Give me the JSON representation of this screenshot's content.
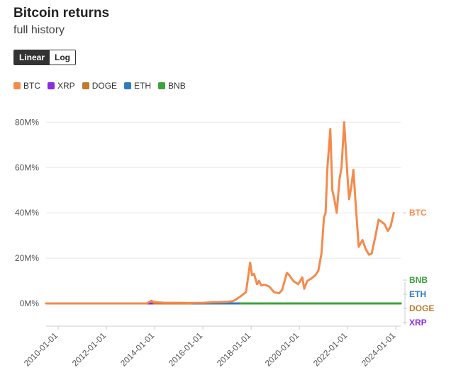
{
  "title": "Bitcoin returns",
  "subtitle": "full history",
  "toggle": {
    "linear_label": "Linear",
    "log_label": "Log",
    "selected": "Linear"
  },
  "colors": {
    "BTC": "#f58a4c",
    "XRP": "#8a2be2",
    "DOGE": "#c07a2c",
    "ETH": "#2f7bbf",
    "BNB": "#3ca33c",
    "grid": "#e8e8e8",
    "axis": "#cccccc",
    "text": "#555555"
  },
  "chart_data": {
    "type": "line",
    "title": "Bitcoin returns",
    "subtitle": "full history",
    "xlabel": "",
    "ylabel": "",
    "x_type": "date",
    "xlim": [
      "2009-07-01",
      "2024-03-15"
    ],
    "ylim": [
      -10000000,
      87000000
    ],
    "y_ticks": [
      0,
      20000000,
      40000000,
      60000000,
      80000000
    ],
    "y_tick_labels": [
      "0M%",
      "20M%",
      "40M%",
      "60M%",
      "80M%"
    ],
    "x_tick_labels": [
      "2010-01-01",
      "2012-01-01",
      "2014-01-01",
      "2016-01-01",
      "2018-01-01",
      "2020-01-01",
      "2022-01-01",
      "2024-01-01"
    ],
    "grid": true,
    "legend": "top-left",
    "series": [
      {
        "name": "BTC",
        "label": "BTC",
        "x": [
          "2009-07-01",
          "2013-03-01",
          "2013-06-01",
          "2013-09-01",
          "2013-11-15",
          "2013-12-01",
          "2014-02-01",
          "2014-06-01",
          "2015-01-01",
          "2015-06-01",
          "2016-01-01",
          "2016-06-01",
          "2017-01-01",
          "2017-04-01",
          "2017-06-01",
          "2017-09-01",
          "2017-10-15",
          "2017-12-17",
          "2018-01-15",
          "2018-02-15",
          "2018-04-01",
          "2018-05-01",
          "2018-06-01",
          "2018-08-01",
          "2018-10-01",
          "2018-12-15",
          "2019-03-01",
          "2019-04-15",
          "2019-06-26",
          "2019-08-01",
          "2019-10-01",
          "2019-12-15",
          "2020-02-15",
          "2020-03-15",
          "2020-05-01",
          "2020-07-01",
          "2020-09-01",
          "2020-10-15",
          "2020-12-01",
          "2021-01-08",
          "2021-02-01",
          "2021-03-01",
          "2021-04-14",
          "2021-05-15",
          "2021-06-15",
          "2021-07-20",
          "2021-09-01",
          "2021-10-01",
          "2021-11-10",
          "2021-12-01",
          "2022-01-01",
          "2022-01-24",
          "2022-03-01",
          "2022-03-30",
          "2022-05-01",
          "2022-06-18",
          "2022-08-15",
          "2022-10-01",
          "2022-11-21",
          "2023-01-01",
          "2023-03-01",
          "2023-04-15",
          "2023-06-01",
          "2023-07-15",
          "2023-09-01",
          "2023-10-15",
          "2023-12-01"
        ],
        "y": [
          0,
          0,
          0,
          0,
          1200000,
          800000,
          500000,
          300000,
          300000,
          200000,
          300000,
          500000,
          700000,
          1000000,
          2000000,
          4000000,
          5000000,
          18000000,
          12500000,
          13000000,
          8500000,
          10000000,
          8000000,
          8200000,
          7500000,
          5000000,
          4500000,
          6000000,
          13500000,
          12500000,
          10000000,
          8500000,
          11500000,
          6500000,
          10000000,
          11000000,
          12500000,
          14500000,
          22000000,
          38000000,
          40000000,
          60000000,
          77000000,
          50000000,
          46000000,
          40000000,
          55000000,
          60000000,
          80000000,
          70000000,
          55000000,
          46000000,
          52000000,
          59000000,
          45000000,
          25000000,
          28000000,
          24000000,
          21500000,
          22000000,
          30000000,
          37000000,
          36000000,
          35000000,
          32000000,
          34000000,
          40000000
        ]
      },
      {
        "name": "XRP",
        "label": "XRP",
        "x": [
          "2013-08-01",
          "2024-03-15"
        ],
        "y": [
          0,
          0
        ]
      },
      {
        "name": "DOGE",
        "label": "DOGE",
        "x": [
          "2013-12-15",
          "2024-03-15"
        ],
        "y": [
          0,
          0
        ]
      },
      {
        "name": "ETH",
        "label": "ETH",
        "x": [
          "2015-08-07",
          "2024-03-15"
        ],
        "y": [
          0,
          0
        ]
      },
      {
        "name": "BNB",
        "label": "BNB",
        "x": [
          "2017-07-25",
          "2024-03-15"
        ],
        "y": [
          0,
          0
        ]
      }
    ]
  }
}
